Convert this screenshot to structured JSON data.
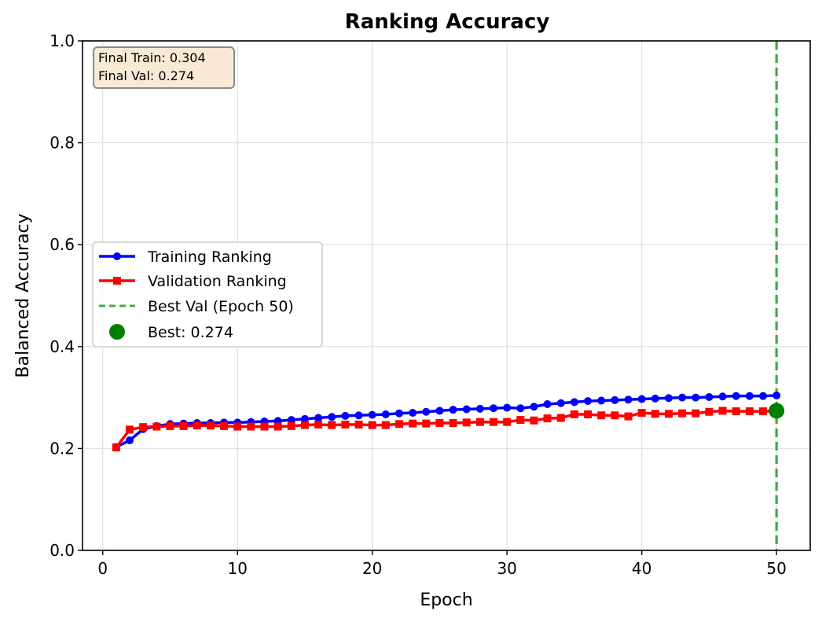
{
  "chart_data": {
    "type": "line",
    "title": "Ranking Accuracy",
    "xlabel": "Epoch",
    "ylabel": "Balanced Accuracy",
    "xlim": [
      -1.5,
      52.5
    ],
    "ylim": [
      0.0,
      1.0
    ],
    "xticks": [
      0,
      10,
      20,
      30,
      40,
      50
    ],
    "yticks": [
      0.0,
      0.2,
      0.4,
      0.6,
      0.8,
      1.0
    ],
    "xtick_labels": [
      "0",
      "10",
      "20",
      "30",
      "40",
      "50"
    ],
    "ytick_labels": [
      "0.0",
      "0.2",
      "0.4",
      "0.6",
      "0.8",
      "1.0"
    ],
    "grid": true,
    "legend_position": "center-left",
    "series": [
      {
        "name": "Training Ranking",
        "color": "#0000ff",
        "marker": "circle",
        "x": [
          1,
          2,
          3,
          4,
          5,
          6,
          7,
          8,
          9,
          10,
          11,
          12,
          13,
          14,
          15,
          16,
          17,
          18,
          19,
          20,
          21,
          22,
          23,
          24,
          25,
          26,
          27,
          28,
          29,
          30,
          31,
          32,
          33,
          34,
          35,
          36,
          37,
          38,
          39,
          40,
          41,
          42,
          43,
          44,
          45,
          46,
          47,
          48,
          49,
          50
        ],
        "values": [
          0.203,
          0.216,
          0.238,
          0.244,
          0.248,
          0.249,
          0.25,
          0.25,
          0.251,
          0.251,
          0.252,
          0.253,
          0.254,
          0.256,
          0.258,
          0.26,
          0.262,
          0.264,
          0.265,
          0.266,
          0.267,
          0.269,
          0.27,
          0.272,
          0.274,
          0.276,
          0.277,
          0.278,
          0.279,
          0.28,
          0.279,
          0.282,
          0.287,
          0.289,
          0.291,
          0.293,
          0.294,
          0.295,
          0.296,
          0.297,
          0.298,
          0.299,
          0.3,
          0.3,
          0.301,
          0.302,
          0.303,
          0.303,
          0.303,
          0.304
        ]
      },
      {
        "name": "Validation Ranking",
        "color": "#ff0000",
        "marker": "square",
        "x": [
          1,
          2,
          3,
          4,
          5,
          6,
          7,
          8,
          9,
          10,
          11,
          12,
          13,
          14,
          15,
          16,
          17,
          18,
          19,
          20,
          21,
          22,
          23,
          24,
          25,
          26,
          27,
          28,
          29,
          30,
          31,
          32,
          33,
          34,
          35,
          36,
          37,
          38,
          39,
          40,
          41,
          42,
          43,
          44,
          45,
          46,
          47,
          48,
          49,
          50
        ],
        "values": [
          0.202,
          0.237,
          0.242,
          0.243,
          0.244,
          0.244,
          0.245,
          0.245,
          0.244,
          0.243,
          0.243,
          0.243,
          0.243,
          0.244,
          0.246,
          0.247,
          0.246,
          0.247,
          0.247,
          0.246,
          0.246,
          0.248,
          0.249,
          0.249,
          0.25,
          0.25,
          0.251,
          0.252,
          0.252,
          0.252,
          0.256,
          0.255,
          0.259,
          0.26,
          0.267,
          0.267,
          0.265,
          0.265,
          0.263,
          0.27,
          0.268,
          0.268,
          0.269,
          0.269,
          0.272,
          0.274,
          0.273,
          0.273,
          0.273,
          0.274
        ]
      }
    ],
    "best_val": {
      "legend_line": "Best Val (Epoch 50)",
      "legend_point": "Best: 0.274",
      "epoch": 50,
      "value": 0.274,
      "line_color": "#3cae3c",
      "point_color": "#008000"
    },
    "annotation": {
      "line1": "Final Train: 0.304",
      "line2": "Final Val: 0.274",
      "background": "#f8ead6",
      "border": "#8a8a8a"
    }
  }
}
